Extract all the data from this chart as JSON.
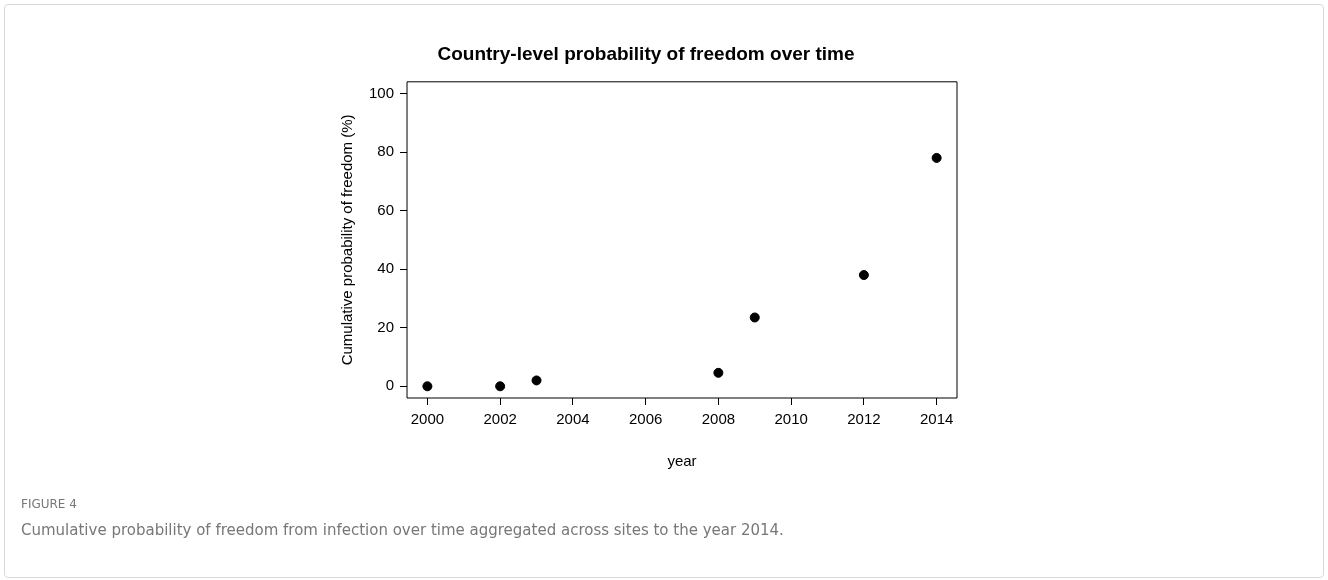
{
  "chart_data": {
    "type": "scatter",
    "title": "Country-level probability of freedom over time",
    "xlabel": "year",
    "ylabel": "Cumulative probability of freedom (%)",
    "x": [
      2000,
      2002,
      2003,
      2008,
      2009,
      2012,
      2014
    ],
    "series": [
      {
        "color": "#000000",
        "values": [
          0,
          0,
          2,
          4.6,
          23.5,
          38,
          78
        ]
      }
    ],
    "xlim": [
      1999.44,
      2014.56
    ],
    "xticks": [
      2000,
      2002,
      2004,
      2006,
      2008,
      2010,
      2012,
      2014
    ],
    "ylim": [
      -4,
      104
    ],
    "yticks": [
      0,
      20,
      40,
      60,
      80,
      100
    ],
    "grid": false,
    "legend": false,
    "marker": "circle",
    "annotations": [
      "FIGURE 4",
      "Cumulative probability of freedom from infection over time aggregated across sites to the year 2014."
    ]
  }
}
